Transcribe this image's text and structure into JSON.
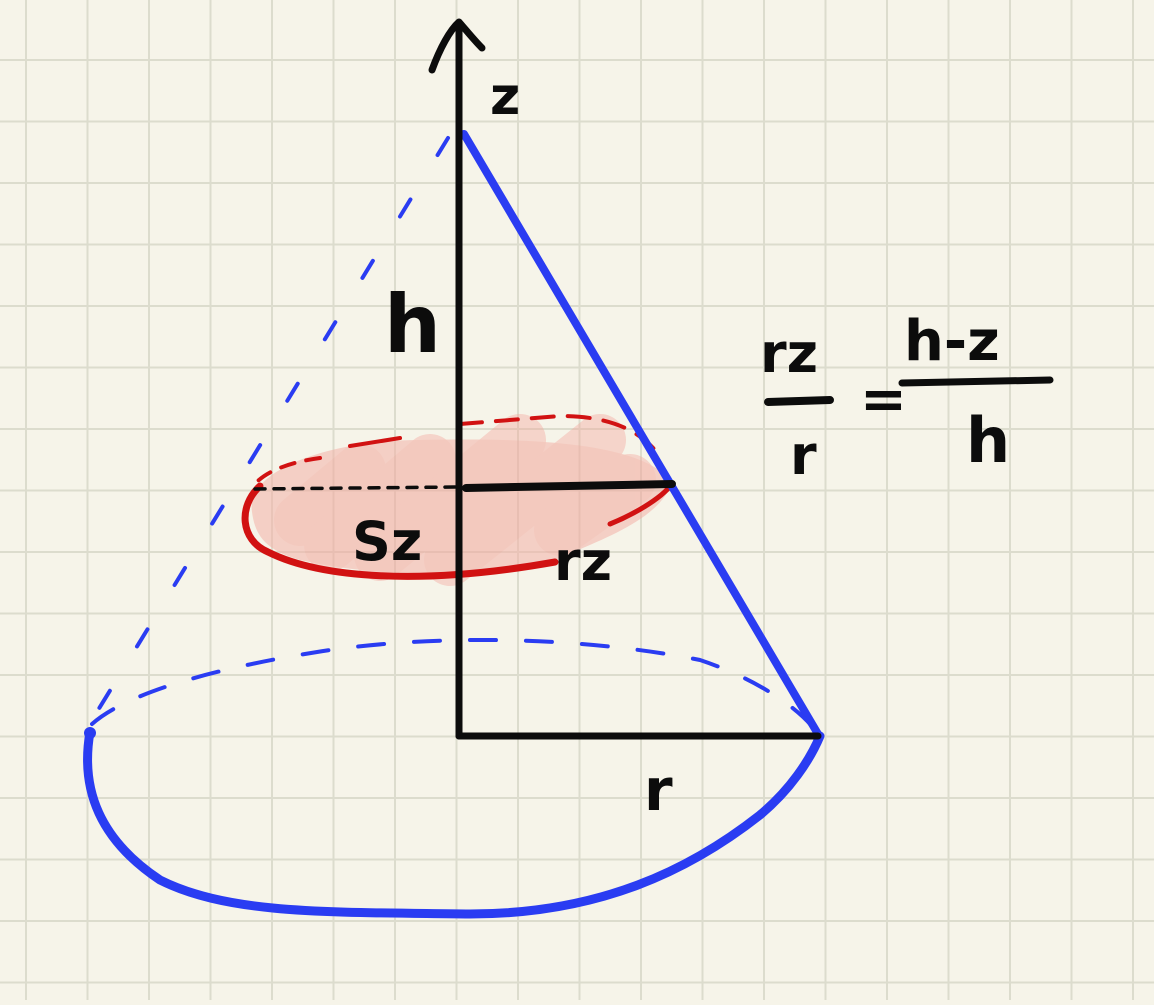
{
  "colors": {
    "paper": "#f6f4e9",
    "grid": "#dcdccd",
    "ink": "#0c0c0c",
    "cone": "#2a3cf2",
    "section": "#d11212",
    "section_fill": "#f4b2a8"
  },
  "labels": {
    "axis": "z",
    "height": "h",
    "section_area": "Sz",
    "section_radius": "rz",
    "base_radius": "r"
  },
  "formula": {
    "lhs_numerator": "rz",
    "lhs_denominator": "r",
    "equals": "=",
    "rhs_numerator": "h-z",
    "rhs_denominator": "h"
  }
}
